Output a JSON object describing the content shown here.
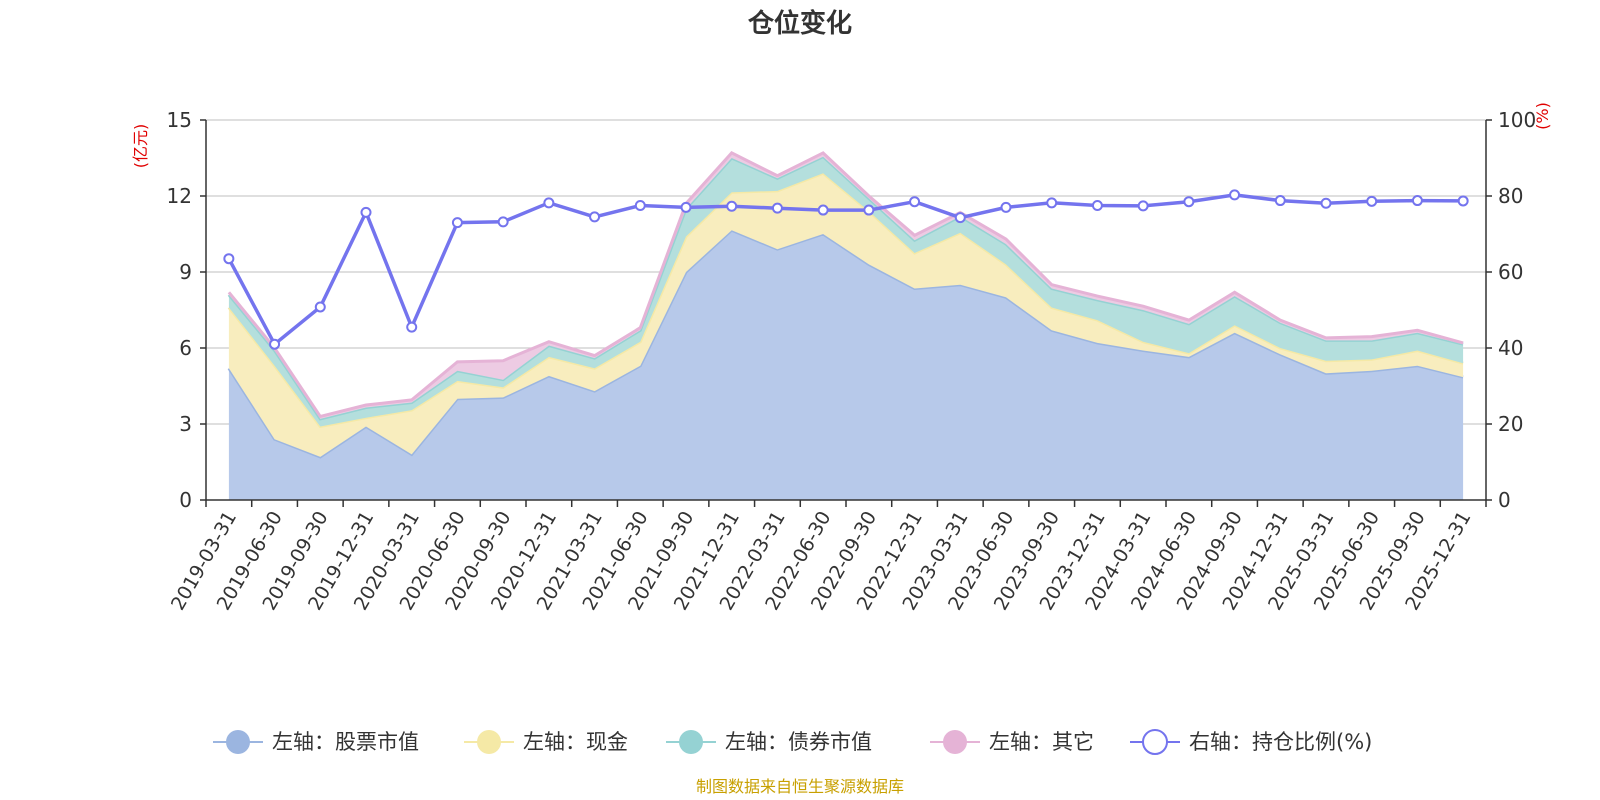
{
  "chart_data": {
    "type": "area",
    "title": "仓位变化",
    "left_unit": "(亿元)",
    "right_unit": "(%)",
    "ylim_left": [
      0,
      15
    ],
    "ylim_right": [
      0,
      100
    ],
    "yticks_left": [
      0,
      3,
      6,
      9,
      12,
      15
    ],
    "yticks_right": [
      0,
      20,
      40,
      60,
      80,
      100
    ],
    "categories": [
      "2019-03-31",
      "2019-06-30",
      "2019-09-30",
      "2019-12-31",
      "2020-03-31",
      "2020-06-30",
      "2020-09-30",
      "2020-12-31",
      "2021-03-31",
      "2021-06-30",
      "2021-09-30",
      "2021-12-31",
      "2022-03-31",
      "2022-06-30",
      "2022-09-30",
      "2022-12-31",
      "2023-03-31",
      "2023-06-30",
      "2023-09-30",
      "2023-12-31",
      "2024-03-31",
      "2024-06-30",
      "2024-09-30",
      "2024-12-31",
      "2025-03-31",
      "2025-06-30",
      "2025-09-30",
      "2025-12-31"
    ],
    "series": [
      {
        "name": "左轴：股票市值",
        "axis": "left",
        "color": "#9bb5e0",
        "fill": "#b7c9ea",
        "values": [
          5.2,
          2.4,
          1.7,
          2.9,
          1.8,
          4.0,
          4.05,
          4.9,
          4.3,
          5.3,
          9.0,
          10.65,
          9.9,
          10.5,
          9.3,
          8.35,
          8.5,
          8.0,
          6.7,
          6.2,
          5.9,
          5.65,
          6.6,
          5.75,
          5.0,
          5.1,
          5.3,
          4.85
        ]
      },
      {
        "name": "左轴：现金",
        "axis": "left",
        "color": "#f5e9a6",
        "fill": "#f8edbe",
        "values": [
          2.4,
          2.9,
          1.2,
          0.35,
          1.75,
          0.7,
          0.4,
          0.75,
          0.9,
          0.95,
          1.4,
          1.5,
          2.3,
          2.4,
          2.1,
          1.4,
          2.05,
          1.3,
          0.9,
          0.9,
          0.35,
          0.15,
          0.3,
          0.25,
          0.5,
          0.45,
          0.6,
          0.55
        ]
      },
      {
        "name": "左轴：债券市值",
        "axis": "left",
        "color": "#95d2d3",
        "fill": "#b4dfdd",
        "values": [
          0.5,
          0.6,
          0.3,
          0.4,
          0.3,
          0.4,
          0.3,
          0.45,
          0.4,
          0.45,
          1.1,
          1.35,
          0.5,
          0.65,
          0.5,
          0.5,
          0.65,
          0.8,
          0.75,
          0.8,
          1.25,
          1.15,
          1.15,
          1.0,
          0.8,
          0.75,
          0.7,
          0.75
        ]
      },
      {
        "name": "左轴：其它",
        "axis": "left",
        "color": "#e5b3d6",
        "fill": "#edcbe3",
        "values": [
          0.1,
          0.1,
          0.1,
          0.1,
          0.1,
          0.35,
          0.75,
          0.15,
          0.1,
          0.1,
          0.2,
          0.2,
          0.1,
          0.15,
          0.1,
          0.2,
          0.15,
          0.2,
          0.15,
          0.15,
          0.15,
          0.15,
          0.15,
          0.1,
          0.1,
          0.15,
          0.1,
          0.05
        ]
      },
      {
        "name": "右轴：持仓比例(%)",
        "axis": "right",
        "color": "#7474ee",
        "values": [
          63.5,
          41.0,
          50.8,
          75.7,
          45.5,
          73.0,
          73.2,
          78.2,
          74.5,
          77.5,
          77.0,
          77.3,
          76.8,
          76.3,
          76.3,
          78.5,
          74.3,
          77.0,
          78.2,
          77.5,
          77.4,
          78.5,
          80.3,
          78.8,
          78.1,
          78.6,
          78.8,
          78.7
        ]
      }
    ],
    "legend_position": "bottom",
    "source": "制图数据来自恒生聚源数据库"
  }
}
